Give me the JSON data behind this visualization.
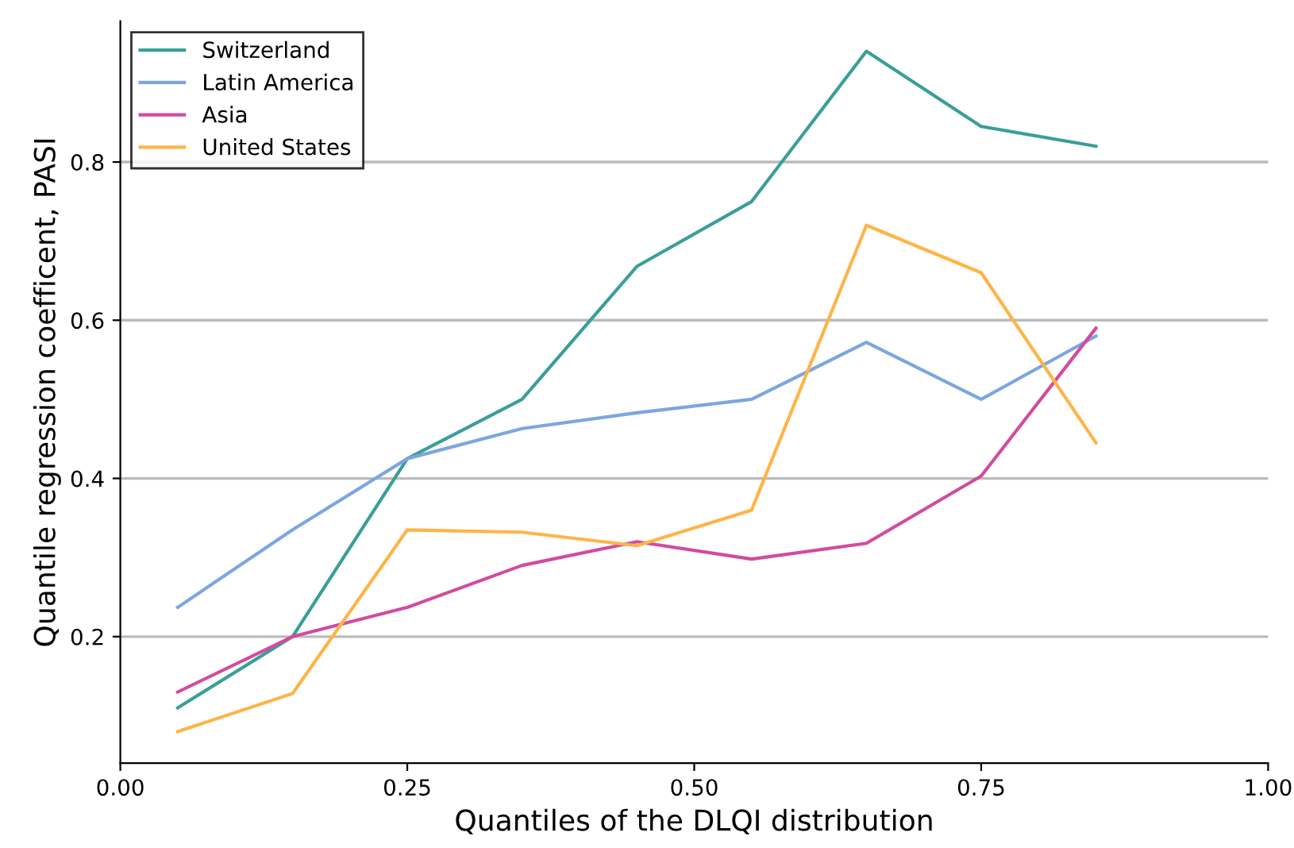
{
  "chart_data": {
    "type": "line",
    "xlabel": "Quantiles of the DLQI distribution",
    "ylabel": "Quantile regression coefficent, PASI",
    "x": [
      0.05,
      0.15,
      0.25,
      0.35,
      0.45,
      0.55,
      0.65,
      0.75,
      0.85
    ],
    "series": [
      {
        "name": "Switzerland",
        "color": "#3a9e9a",
        "values": [
          0.11,
          0.2,
          0.425,
          0.5,
          0.668,
          0.75,
          0.94,
          0.845,
          0.82
        ]
      },
      {
        "name": "Latin America",
        "color": "#7ba6e0",
        "values": [
          0.237,
          0.335,
          0.425,
          0.463,
          0.483,
          0.5,
          0.572,
          0.5,
          0.58
        ]
      },
      {
        "name": "Asia",
        "color": "#d24b9f",
        "values": [
          0.13,
          0.2,
          0.237,
          0.29,
          0.32,
          0.298,
          0.318,
          0.403,
          0.59
        ]
      },
      {
        "name": "United States",
        "color": "#ffb446",
        "values": [
          0.08,
          0.128,
          0.335,
          0.332,
          0.315,
          0.36,
          0.72,
          0.66,
          0.445
        ]
      }
    ],
    "xlim": [
      0,
      1
    ],
    "xticks": [
      {
        "value": 0,
        "label": "0.00"
      },
      {
        "value": 0.25,
        "label": "0.25"
      },
      {
        "value": 0.5,
        "label": "0.50"
      },
      {
        "value": 0.75,
        "label": "0.75"
      },
      {
        "value": 1,
        "label": "1.00"
      }
    ],
    "ylim": [
      0.04,
      0.978
    ],
    "yticks": [
      0.2,
      0.4,
      0.6,
      0.8
    ],
    "grid": "y",
    "legend": "top left",
    "marker": "none",
    "line_style": "solid"
  }
}
